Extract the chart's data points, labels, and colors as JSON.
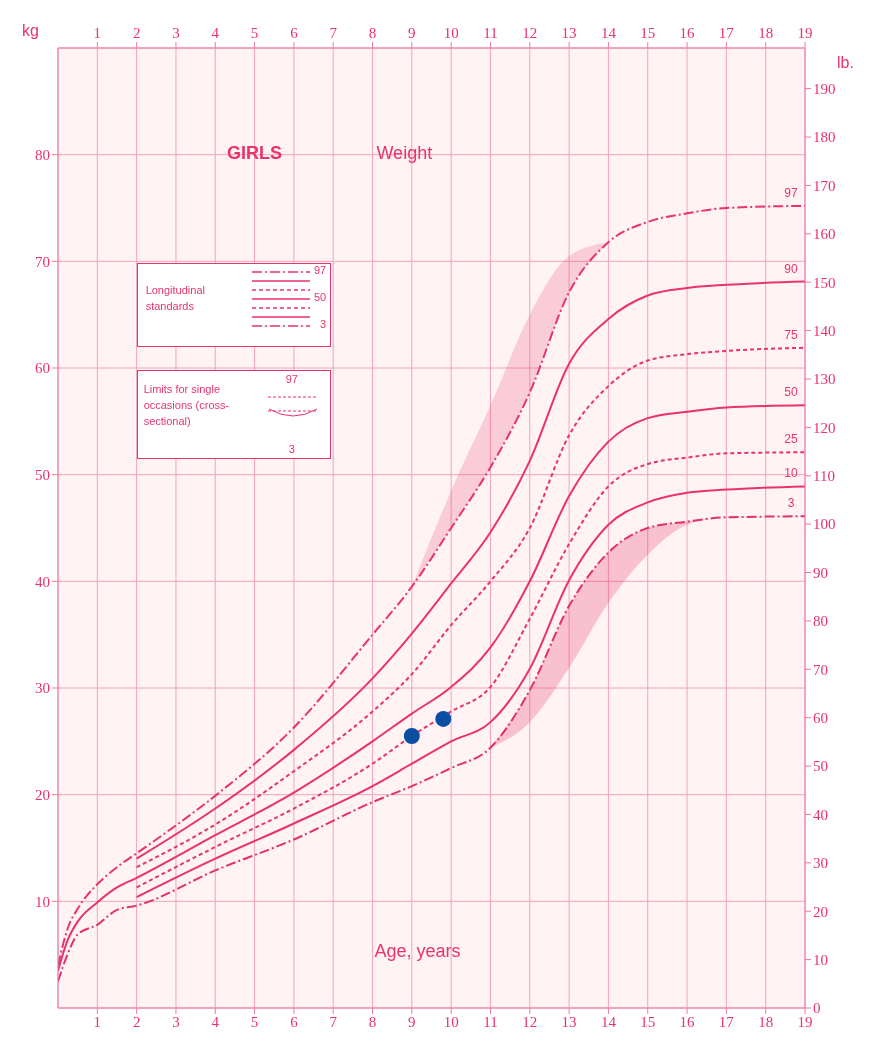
{
  "chart_data": {
    "type": "line",
    "title": "GIRLS",
    "subtitle": "Weight",
    "xlabel": "Age, years",
    "ylabel": "kg",
    "y2label": "lb.",
    "x": [
      0,
      0.25,
      0.5,
      1,
      1.5,
      2,
      4,
      6,
      8,
      9,
      10,
      11,
      12,
      13,
      14,
      15,
      16,
      17,
      19
    ],
    "xlim": [
      0,
      19
    ],
    "xticks": [
      1,
      2,
      3,
      4,
      5,
      6,
      7,
      8,
      9,
      10,
      11,
      12,
      13,
      14,
      15,
      16,
      17,
      18,
      19
    ],
    "x2lim": [
      0,
      19
    ],
    "x2ticks": [
      1,
      2,
      3,
      4,
      5,
      6,
      7,
      8,
      9,
      10,
      11,
      12,
      13,
      14,
      15,
      16,
      17,
      18,
      19
    ],
    "ylim": [
      0,
      90
    ],
    "yticks": [
      10,
      20,
      30,
      40,
      50,
      60,
      70,
      80
    ],
    "y2lim": [
      0,
      198.4
    ],
    "y2ticks": [
      0,
      10,
      20,
      30,
      40,
      50,
      60,
      70,
      80,
      90,
      100,
      110,
      120,
      130,
      140,
      150,
      160,
      170,
      180,
      190
    ],
    "grid": true,
    "series": [
      {
        "name": "97",
        "color": "#e8336b",
        "line_style": "dashed",
        "values": [
          4.0,
          7.5,
          9.3,
          11.6,
          13.2,
          14.5,
          19.9,
          26.3,
          35.0,
          39.5,
          45.0,
          50.7,
          57.7,
          67.1,
          71.8,
          73.7,
          74.5,
          75.0,
          75.2
        ],
        "lower": [
          null,
          null,
          null,
          null,
          null,
          null,
          null,
          null,
          null,
          39.5,
          45.0,
          50.7,
          57.7,
          67.1,
          71.8,
          null,
          null,
          null,
          null
        ],
        "upper": [
          null,
          null,
          null,
          null,
          null,
          null,
          null,
          null,
          null,
          39.5,
          48.5,
          56.5,
          65.0,
          70.5,
          71.8,
          null,
          null,
          null,
          null
        ]
      },
      {
        "name": "90",
        "color": "#e8336b",
        "line_style": "solid",
        "values": [
          null,
          null,
          null,
          null,
          null,
          14.0,
          18.7,
          24.2,
          30.9,
          35.1,
          39.8,
          44.6,
          51.3,
          60.4,
          64.6,
          66.8,
          67.5,
          67.8,
          68.1
        ]
      },
      {
        "name": "75",
        "color": "#e8336b",
        "line_style": "dotted",
        "values": [
          null,
          null,
          null,
          null,
          null,
          13.2,
          17.2,
          22.2,
          27.8,
          31.3,
          35.9,
          40.0,
          45.0,
          53.7,
          58.3,
          60.7,
          61.3,
          61.6,
          61.9
        ]
      },
      {
        "name": "50",
        "color": "#e8336b",
        "line_style": "solid",
        "values": [
          3.5,
          6.4,
          8.1,
          9.9,
          11.3,
          12.2,
          16.2,
          20.2,
          25.0,
          27.6,
          30.1,
          33.8,
          40.0,
          48.0,
          53.1,
          55.3,
          55.9,
          56.3,
          56.5
        ]
      },
      {
        "name": "25",
        "color": "#e8336b",
        "line_style": "dotted",
        "values": [
          null,
          null,
          null,
          null,
          null,
          11.3,
          15.1,
          18.7,
          22.9,
          25.5,
          27.8,
          30.1,
          36.5,
          43.5,
          48.9,
          51.0,
          51.6,
          52.0,
          52.1
        ]
      },
      {
        "name": "10",
        "color": "#e8336b",
        "line_style": "solid",
        "values": [
          null,
          null,
          null,
          null,
          null,
          10.4,
          14.0,
          17.3,
          20.8,
          22.9,
          25.0,
          26.8,
          31.8,
          40.1,
          45.3,
          47.4,
          48.3,
          48.6,
          48.9
        ]
      },
      {
        "name": "3",
        "color": "#e3306a",
        "line_style": "dashed",
        "values": [
          2.5,
          5.1,
          6.9,
          7.8,
          9.2,
          9.6,
          12.9,
          15.8,
          19.3,
          20.8,
          22.5,
          24.4,
          29.8,
          37.7,
          42.7,
          45.0,
          45.6,
          46.0,
          46.1
        ],
        "lower": [
          null,
          null,
          null,
          null,
          null,
          null,
          null,
          null,
          null,
          null,
          null,
          24.4,
          26.8,
          31.9,
          38.0,
          42.5,
          45.3,
          46.0,
          null
        ],
        "upper": [
          null,
          null,
          null,
          null,
          null,
          null,
          null,
          null,
          null,
          null,
          null,
          24.4,
          29.8,
          37.7,
          42.7,
          45.0,
          45.6,
          46.0,
          null
        ]
      },
      {
        "type": "scatter",
        "color": "#0b4ea2",
        "marker": "circle",
        "x": [
          9,
          9.8
        ],
        "values": [
          25.5,
          27.1
        ]
      }
    ],
    "annotations": [
      "Longitudinal standards",
      "97",
      "50",
      "3",
      "Limits for single occasions (cross-sectional)",
      "97",
      "3"
    ]
  }
}
